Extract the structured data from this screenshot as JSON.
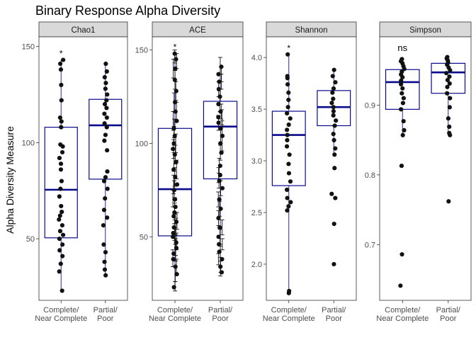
{
  "title": "Binary Response Alpha Diversity",
  "ylabel": "Alpha Diversity Measure",
  "chart_data": [
    {
      "type": "box",
      "panel": "Chao1",
      "categories": [
        "Complete/\nNear Complete",
        "Partial/\nPoor"
      ],
      "ylim": [
        18,
        155
      ],
      "yticks": [
        50,
        100,
        150
      ],
      "annotation": "*",
      "boxes": [
        {
          "q1": 50.5,
          "median": 75.5,
          "q3": 108,
          "whisker_low": 23,
          "whisker_high": 143
        },
        {
          "q1": 81,
          "median": 109,
          "q3": 122.5,
          "whisker_low": 31,
          "whisker_high": 141
        }
      ],
      "points": [
        [
          23,
          33,
          37,
          41,
          44,
          47,
          50,
          52,
          54,
          57,
          60,
          62,
          64,
          67,
          72,
          76,
          80,
          86,
          89,
          92,
          95,
          98,
          99,
          108,
          111,
          113,
          122,
          130,
          138,
          141,
          143
        ],
        [
          31,
          34,
          38,
          43,
          47,
          57,
          61,
          65,
          71,
          76,
          80,
          82,
          85,
          96,
          101,
          104,
          108,
          110,
          113,
          115,
          118,
          120,
          122,
          125,
          128,
          131,
          134,
          137,
          141
        ]
      ],
      "errorbars": null
    },
    {
      "type": "box",
      "panel": "ACE",
      "categories": [
        "Complete/\nNear Complete",
        "Partial/\nPoor"
      ],
      "ylim": [
        16,
        157
      ],
      "yticks": [
        50,
        100,
        150
      ],
      "annotation": "*",
      "boxes": [
        {
          "q1": 50.5,
          "median": 75.5,
          "q3": 108,
          "whisker_low": 23,
          "whisker_high": 148
        },
        {
          "q1": 81,
          "median": 109,
          "q3": 122.5,
          "whisker_low": 31,
          "whisker_high": 141
        }
      ],
      "points": [
        [
          23,
          30,
          34,
          38,
          41,
          44,
          47,
          50,
          52,
          55,
          58,
          61,
          63,
          66,
          70,
          75,
          78,
          82,
          86,
          90,
          94,
          97,
          100,
          104,
          108,
          112,
          117,
          122,
          128,
          134,
          140,
          145,
          148
        ],
        [
          31,
          34,
          38,
          42,
          46,
          50,
          55,
          60,
          65,
          70,
          76,
          80,
          83,
          88,
          95,
          100,
          104,
          108,
          111,
          114,
          117,
          121,
          125,
          129,
          133,
          137,
          141
        ]
      ],
      "errorbars": [
        [
          [
            21,
            26
          ],
          [
            26,
            34
          ],
          [
            30,
            38
          ],
          [
            34,
            43
          ],
          [
            37,
            46
          ],
          [
            40,
            49
          ],
          [
            43,
            52
          ],
          [
            46,
            55
          ],
          [
            48,
            57
          ],
          [
            51,
            60
          ],
          [
            54,
            63
          ],
          [
            57,
            66
          ],
          [
            59,
            68
          ],
          [
            62,
            71
          ],
          [
            66,
            75
          ],
          [
            70,
            80
          ],
          [
            73,
            83
          ],
          [
            77,
            87
          ],
          [
            81,
            91
          ],
          [
            85,
            95
          ],
          [
            89,
            99
          ],
          [
            92,
            102
          ],
          [
            95,
            105
          ],
          [
            99,
            109
          ],
          [
            103,
            113
          ],
          [
            107,
            117
          ],
          [
            112,
            122
          ],
          [
            117,
            127
          ],
          [
            123,
            133
          ],
          [
            129,
            139
          ],
          [
            135,
            145
          ],
          [
            140,
            148
          ],
          [
            143,
            150
          ]
        ],
        [
          [
            29,
            34
          ],
          [
            31,
            37
          ],
          [
            35,
            41
          ],
          [
            39,
            45
          ],
          [
            43,
            49
          ],
          [
            46,
            54
          ],
          [
            51,
            59
          ],
          [
            56,
            64
          ],
          [
            61,
            69
          ],
          [
            66,
            74
          ],
          [
            72,
            80
          ],
          [
            76,
            84
          ],
          [
            79,
            87
          ],
          [
            84,
            92
          ],
          [
            91,
            99
          ],
          [
            96,
            104
          ],
          [
            100,
            108
          ],
          [
            104,
            112
          ],
          [
            107,
            115
          ],
          [
            110,
            118
          ],
          [
            113,
            121
          ],
          [
            117,
            125
          ],
          [
            121,
            129
          ],
          [
            125,
            133
          ],
          [
            129,
            137
          ],
          [
            133,
            141
          ],
          [
            137,
            146
          ]
        ]
      ]
    },
    {
      "type": "box",
      "panel": "Shannon",
      "categories": [
        "Complete/\nNear Complete",
        "Partial/\nPoor"
      ],
      "ylim": [
        1.65,
        4.2
      ],
      "yticks": [
        2.0,
        2.5,
        3.0,
        3.5,
        4.0
      ],
      "tick_labels": [
        "2.0",
        "2.5",
        "3.0",
        "3.5",
        "4.0"
      ],
      "annotation": "*",
      "boxes": [
        {
          "q1": 2.76,
          "median": 3.25,
          "q3": 3.48,
          "whisker_low": 1.72,
          "whisker_high": 4.03
        },
        {
          "q1": 3.34,
          "median": 3.52,
          "q3": 3.68,
          "whisker_low": 3.06,
          "whisker_high": 3.88
        }
      ],
      "points": [
        [
          1.72,
          1.74,
          2.52,
          2.56,
          2.6,
          2.64,
          2.72,
          2.8,
          2.88,
          2.97,
          3.06,
          3.14,
          3.2,
          3.25,
          3.3,
          3.35,
          3.41,
          3.46,
          3.52,
          3.59,
          3.66,
          3.74,
          3.8,
          3.82,
          4.03
        ],
        [
          2.0,
          2.39,
          2.64,
          2.68,
          2.93,
          3.06,
          3.12,
          3.2,
          3.26,
          3.34,
          3.39,
          3.44,
          3.48,
          3.52,
          3.56,
          3.6,
          3.66,
          3.7,
          3.76,
          3.82,
          3.88
        ]
      ],
      "errorbars": null
    },
    {
      "type": "box",
      "panel": "Simpson",
      "categories": [
        "Complete/\nNear Complete",
        "Partial/\nPoor"
      ],
      "ylim": [
        0.62,
        0.998
      ],
      "yticks": [
        0.7,
        0.8,
        0.9
      ],
      "tick_labels": [
        "0.7",
        "0.8",
        "0.9"
      ],
      "annotation": "ns",
      "boxes": [
        {
          "q1": 0.894,
          "median": 0.933,
          "q3": 0.951,
          "whisker_low": 0.857,
          "whisker_high": 0.966
        },
        {
          "q1": 0.917,
          "median": 0.947,
          "q3": 0.96,
          "whisker_low": 0.857,
          "whisker_high": 0.969
        }
      ],
      "points": [
        [
          0.641,
          0.686,
          0.813,
          0.857,
          0.864,
          0.877,
          0.894,
          0.903,
          0.91,
          0.917,
          0.924,
          0.93,
          0.935,
          0.94,
          0.944,
          0.948,
          0.952,
          0.956,
          0.96,
          0.963,
          0.966
        ],
        [
          0.762,
          0.857,
          0.86,
          0.869,
          0.881,
          0.897,
          0.91,
          0.917,
          0.926,
          0.931,
          0.936,
          0.941,
          0.946,
          0.95,
          0.954,
          0.958,
          0.961,
          0.964,
          0.967,
          0.969
        ]
      ],
      "errorbars": null
    }
  ]
}
